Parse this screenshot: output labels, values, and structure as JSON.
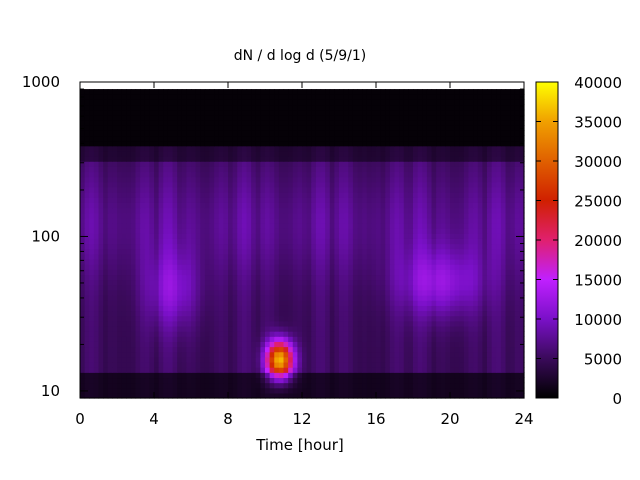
{
  "chart_data": {
    "type": "heatmap",
    "title": "dN / d log d (5/9/1)",
    "xlabel": "Time [hour]",
    "ylabel": "",
    "x_range": [
      0,
      24
    ],
    "y_range": [
      9,
      1000
    ],
    "y_scale": "log",
    "x_ticks": [
      "0",
      "4",
      "8",
      "12",
      "16",
      "20",
      "24"
    ],
    "x_tick_values": [
      0,
      4,
      8,
      12,
      16,
      20,
      24
    ],
    "y_ticks": [
      "10",
      "100",
      "1000"
    ],
    "y_tick_values": [
      10,
      100,
      1000
    ],
    "colorbar": {
      "range": [
        0,
        40000
      ],
      "ticks": [
        "0",
        "5000",
        "10000",
        "15000",
        "20000",
        "25000",
        "30000",
        "35000",
        "40000"
      ],
      "tick_values": [
        0,
        5000,
        10000,
        15000,
        20000,
        25000,
        30000,
        35000,
        40000
      ],
      "palette": [
        "#000000",
        "#3a0a5a",
        "#7a10c8",
        "#c020ff",
        "#e0206e",
        "#d02000",
        "#e06000",
        "#f0a000",
        "#ffff00"
      ]
    },
    "features": [
      {
        "t": 10.8,
        "d": 16,
        "peak": 32000
      },
      {
        "t": 5.0,
        "d": 45,
        "peak": 11000
      },
      {
        "t": 19.5,
        "d": 50,
        "peak": 12000
      }
    ],
    "grid": false,
    "legend": "colorbar-right"
  }
}
